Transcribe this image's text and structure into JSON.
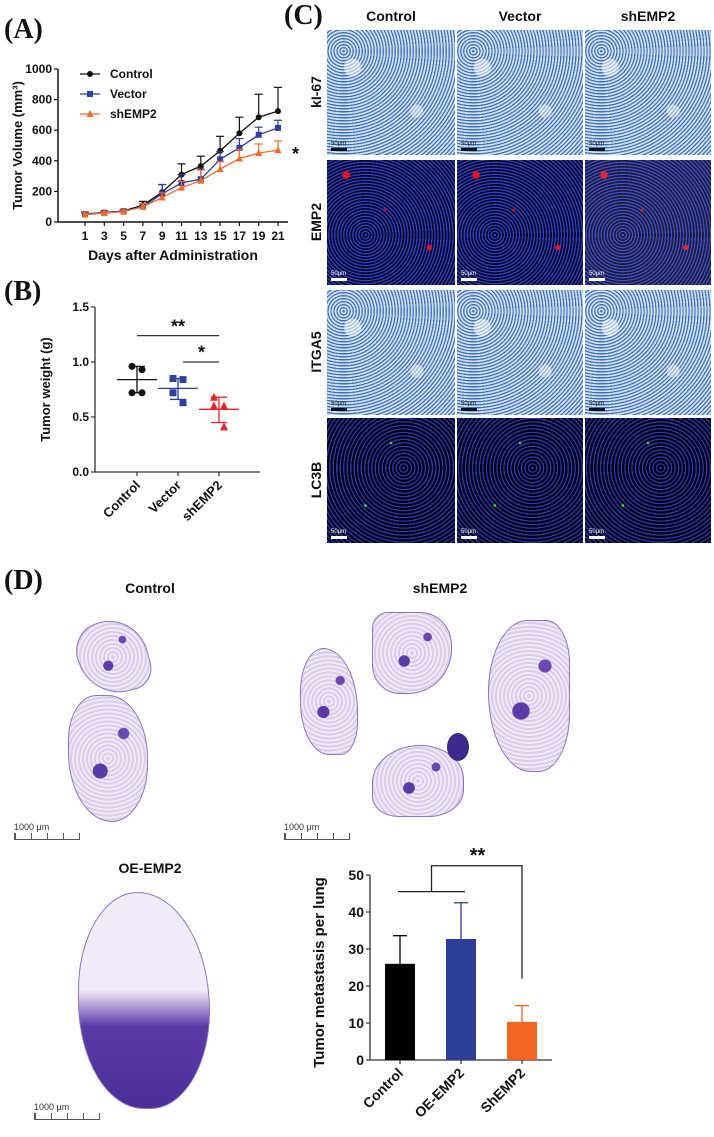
{
  "panels": {
    "A": {
      "label": "(A)"
    },
    "B": {
      "label": "(B)"
    },
    "C": {
      "label": "(C)"
    },
    "D": {
      "label": "(D)"
    }
  },
  "panel_c": {
    "columns": [
      "Control",
      "Vector",
      "shEMP2"
    ],
    "rows": [
      "kI-67",
      "EMP2",
      "ITGA5",
      "LC3B"
    ],
    "scale_label": "50μm"
  },
  "panel_d": {
    "images": [
      {
        "title": "Control",
        "scale_label": "1000 μm"
      },
      {
        "title": "shEMP2",
        "scale_label": "1000 μm"
      },
      {
        "title": "OE-EMP2",
        "scale_label": "1000 μm"
      }
    ]
  },
  "chart_data": [
    {
      "id": "A",
      "type": "line",
      "title": "",
      "xlabel": "Days after Administration",
      "ylabel": "Tumor Volume (mm³)",
      "ylim": [
        0,
        1000
      ],
      "yticks": [
        0,
        200,
        400,
        600,
        800,
        1000
      ],
      "x": [
        1,
        3,
        5,
        7,
        9,
        11,
        13,
        15,
        17,
        19,
        21
      ],
      "legend_position": "top-left",
      "series": [
        {
          "name": "Control",
          "color": "#111111",
          "marker": "circle",
          "values": [
            52,
            62,
            72,
            110,
            195,
            310,
            365,
            465,
            580,
            685,
            725
          ],
          "errors": [
            12,
            10,
            10,
            25,
            50,
            70,
            65,
            95,
            105,
            150,
            155
          ]
        },
        {
          "name": "Vector",
          "color": "#2f3f9e",
          "marker": "square",
          "values": [
            50,
            60,
            70,
            100,
            185,
            255,
            280,
            410,
            485,
            570,
            615
          ],
          "errors": [
            10,
            10,
            10,
            20,
            60,
            55,
            65,
            50,
            60,
            50,
            50
          ]
        },
        {
          "name": "shEMP2",
          "color": "#f26a2a",
          "marker": "triangle",
          "values": [
            48,
            58,
            68,
            100,
            160,
            225,
            270,
            345,
            415,
            450,
            470
          ],
          "errors": [
            10,
            10,
            10,
            20,
            30,
            40,
            70,
            50,
            60,
            60,
            60
          ]
        }
      ],
      "annotations": [
        {
          "text": "*",
          "x": 21,
          "y": 470
        }
      ]
    },
    {
      "id": "B",
      "type": "scatter",
      "title": "",
      "xlabel": "",
      "ylabel": "Tumor weight (g)",
      "ylim": [
        0,
        1.5
      ],
      "yticks": [
        "0.0",
        "0.5",
        "1.0",
        "1.5"
      ],
      "categories": [
        "Control",
        "Vector",
        "shEMP2"
      ],
      "series": [
        {
          "name": "Control",
          "color": "#111111",
          "marker": "circle",
          "points": [
            0.96,
            0.93,
            0.72,
            0.72
          ],
          "mean": 0.84,
          "sd_low": 0.72,
          "sd_high": 0.96
        },
        {
          "name": "Vector",
          "color": "#2f3f9e",
          "marker": "square",
          "points": [
            0.85,
            0.84,
            0.72,
            0.63
          ],
          "mean": 0.76,
          "sd_low": 0.66,
          "sd_high": 0.85
        },
        {
          "name": "shEMP2",
          "color": "#e8222a",
          "marker": "triangle",
          "points": [
            0.68,
            0.6,
            0.6,
            0.41
          ],
          "mean": 0.57,
          "sd_low": 0.45,
          "sd_high": 0.68
        }
      ],
      "annotations": [
        {
          "text": "**",
          "from": "Control",
          "to": "shEMP2"
        },
        {
          "text": "*",
          "from": "Vector",
          "to": "shEMP2"
        }
      ]
    },
    {
      "id": "D",
      "type": "bar",
      "title": "",
      "xlabel": "",
      "ylabel": "Tumor metastasis per lung",
      "ylim": [
        0,
        50
      ],
      "yticks": [
        0,
        10,
        20,
        30,
        40,
        50
      ],
      "categories": [
        "Control",
        "OE-EMP2",
        "ShEMP2"
      ],
      "values": [
        26,
        32.7,
        10.3
      ],
      "errors": [
        7.6,
        9.8,
        4.4
      ],
      "colors": [
        "#000000",
        "#2e3f9a",
        "#f26522"
      ],
      "annotations": [
        {
          "text": "**",
          "from": [
            "Control",
            "OE-EMP2"
          ],
          "to": "ShEMP2"
        }
      ]
    }
  ]
}
